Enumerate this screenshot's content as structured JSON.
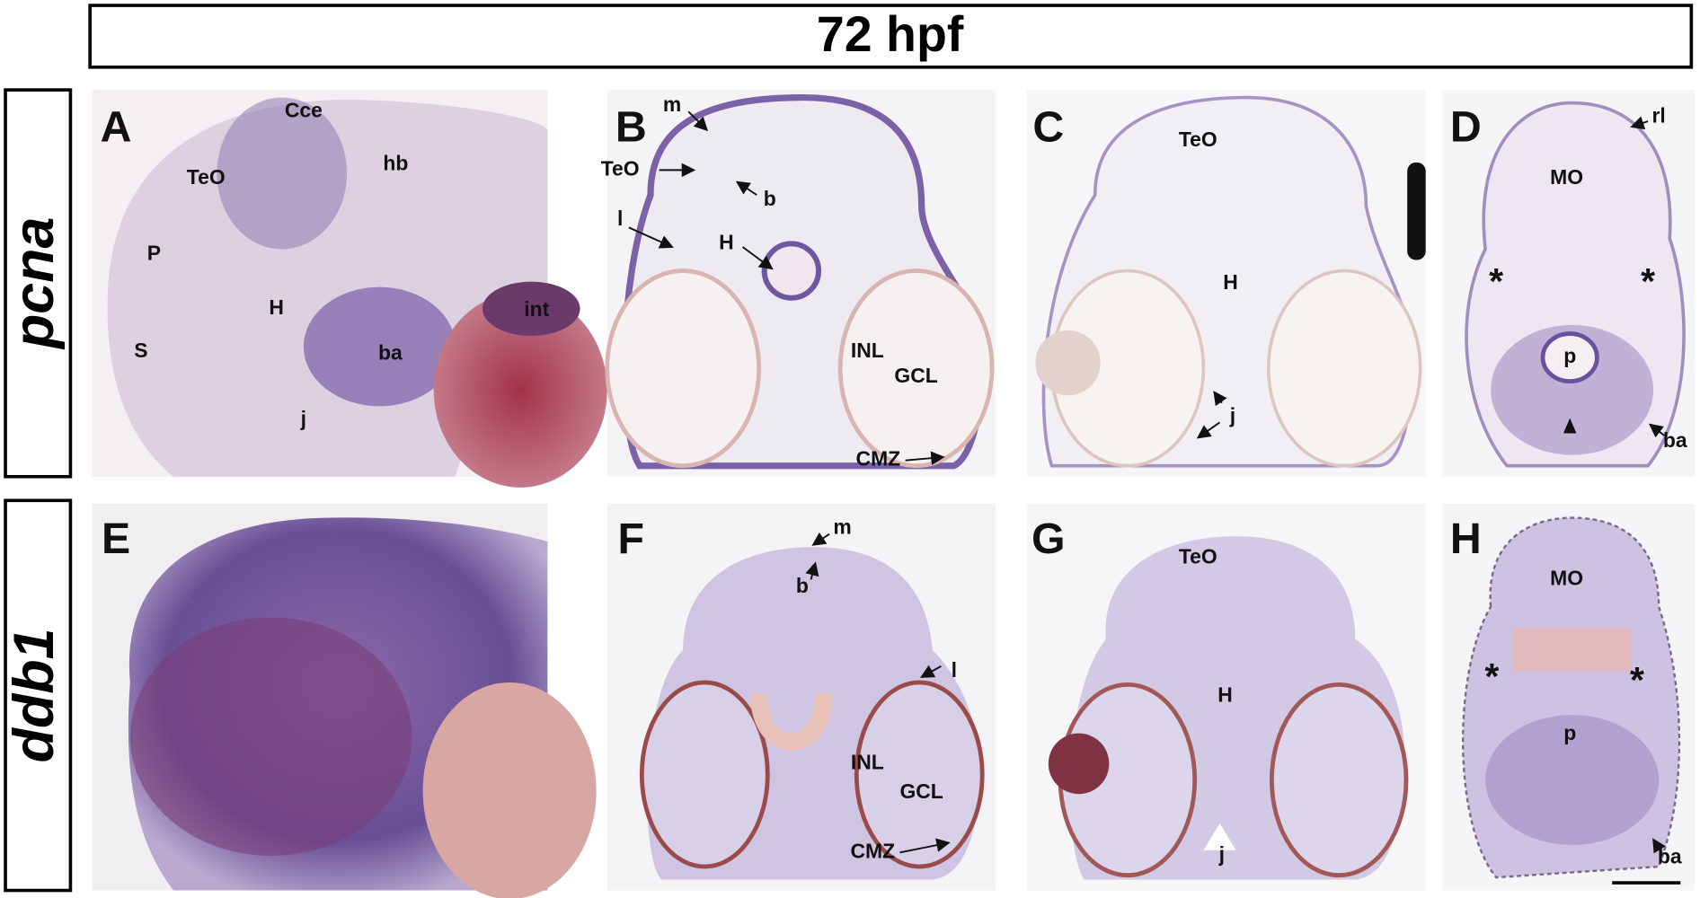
{
  "header": {
    "title": "72 hpf"
  },
  "rows": [
    {
      "label": "pcna"
    },
    {
      "label": "ddb1"
    }
  ],
  "panels": [
    {
      "letter": "A",
      "labels": [
        "Cce",
        "hb",
        "TeO",
        "P",
        "H",
        "int",
        "S",
        "ba",
        "j"
      ]
    },
    {
      "letter": "B",
      "labels": [
        "m",
        "TeO",
        "b",
        "l",
        "H",
        "INL",
        "GCL",
        "CMZ"
      ]
    },
    {
      "letter": "C",
      "labels": [
        "TeO",
        "H",
        "j"
      ]
    },
    {
      "letter": "D",
      "labels": [
        "rl",
        "MO",
        "*",
        "*",
        "p",
        "ba"
      ]
    },
    {
      "letter": "E",
      "labels": []
    },
    {
      "letter": "F",
      "labels": [
        "m",
        "b",
        "l",
        "INL",
        "GCL",
        "CMZ"
      ]
    },
    {
      "letter": "G",
      "labels": [
        "TeO",
        "H",
        "j"
      ]
    },
    {
      "letter": "H",
      "labels": [
        "MO",
        "*",
        "*",
        "p",
        "ba"
      ]
    }
  ]
}
